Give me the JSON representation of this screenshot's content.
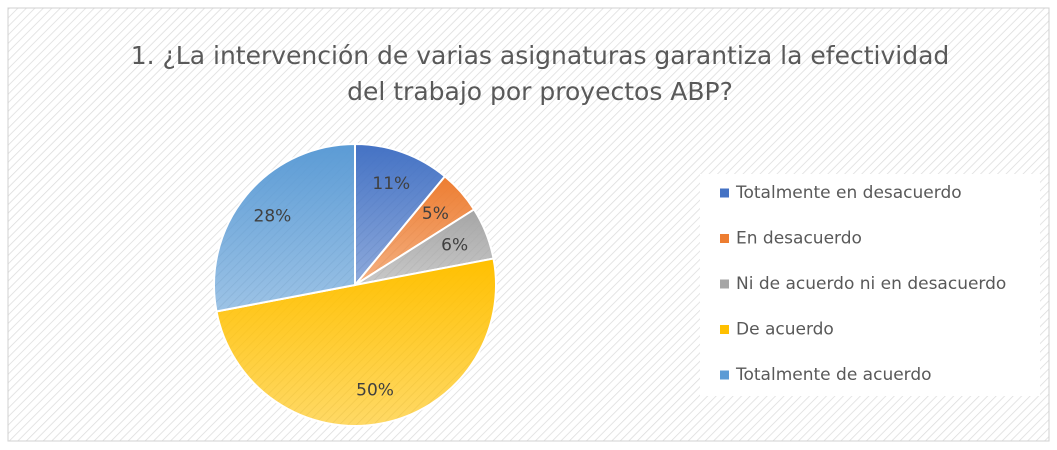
{
  "chart_data": {
    "type": "pie",
    "title": "1. ¿La intervención de varias asignaturas garantiza la efectividad del trabajo por proyectos ABP?",
    "categories": [
      "Totalmente en desacuerdo",
      "En desacuerdo",
      "Ni de acuerdo ni en desacuerdo",
      "De acuerdo",
      "Totalmente de acuerdo"
    ],
    "values": [
      11,
      5,
      6,
      50,
      28
    ],
    "value_labels": [
      "11%",
      "5%",
      "6%",
      "50%",
      "28%"
    ],
    "colors": [
      "#4472c4",
      "#ed7d31",
      "#a5a5a5",
      "#ffc000",
      "#5b9bd5"
    ],
    "legend": "right"
  }
}
